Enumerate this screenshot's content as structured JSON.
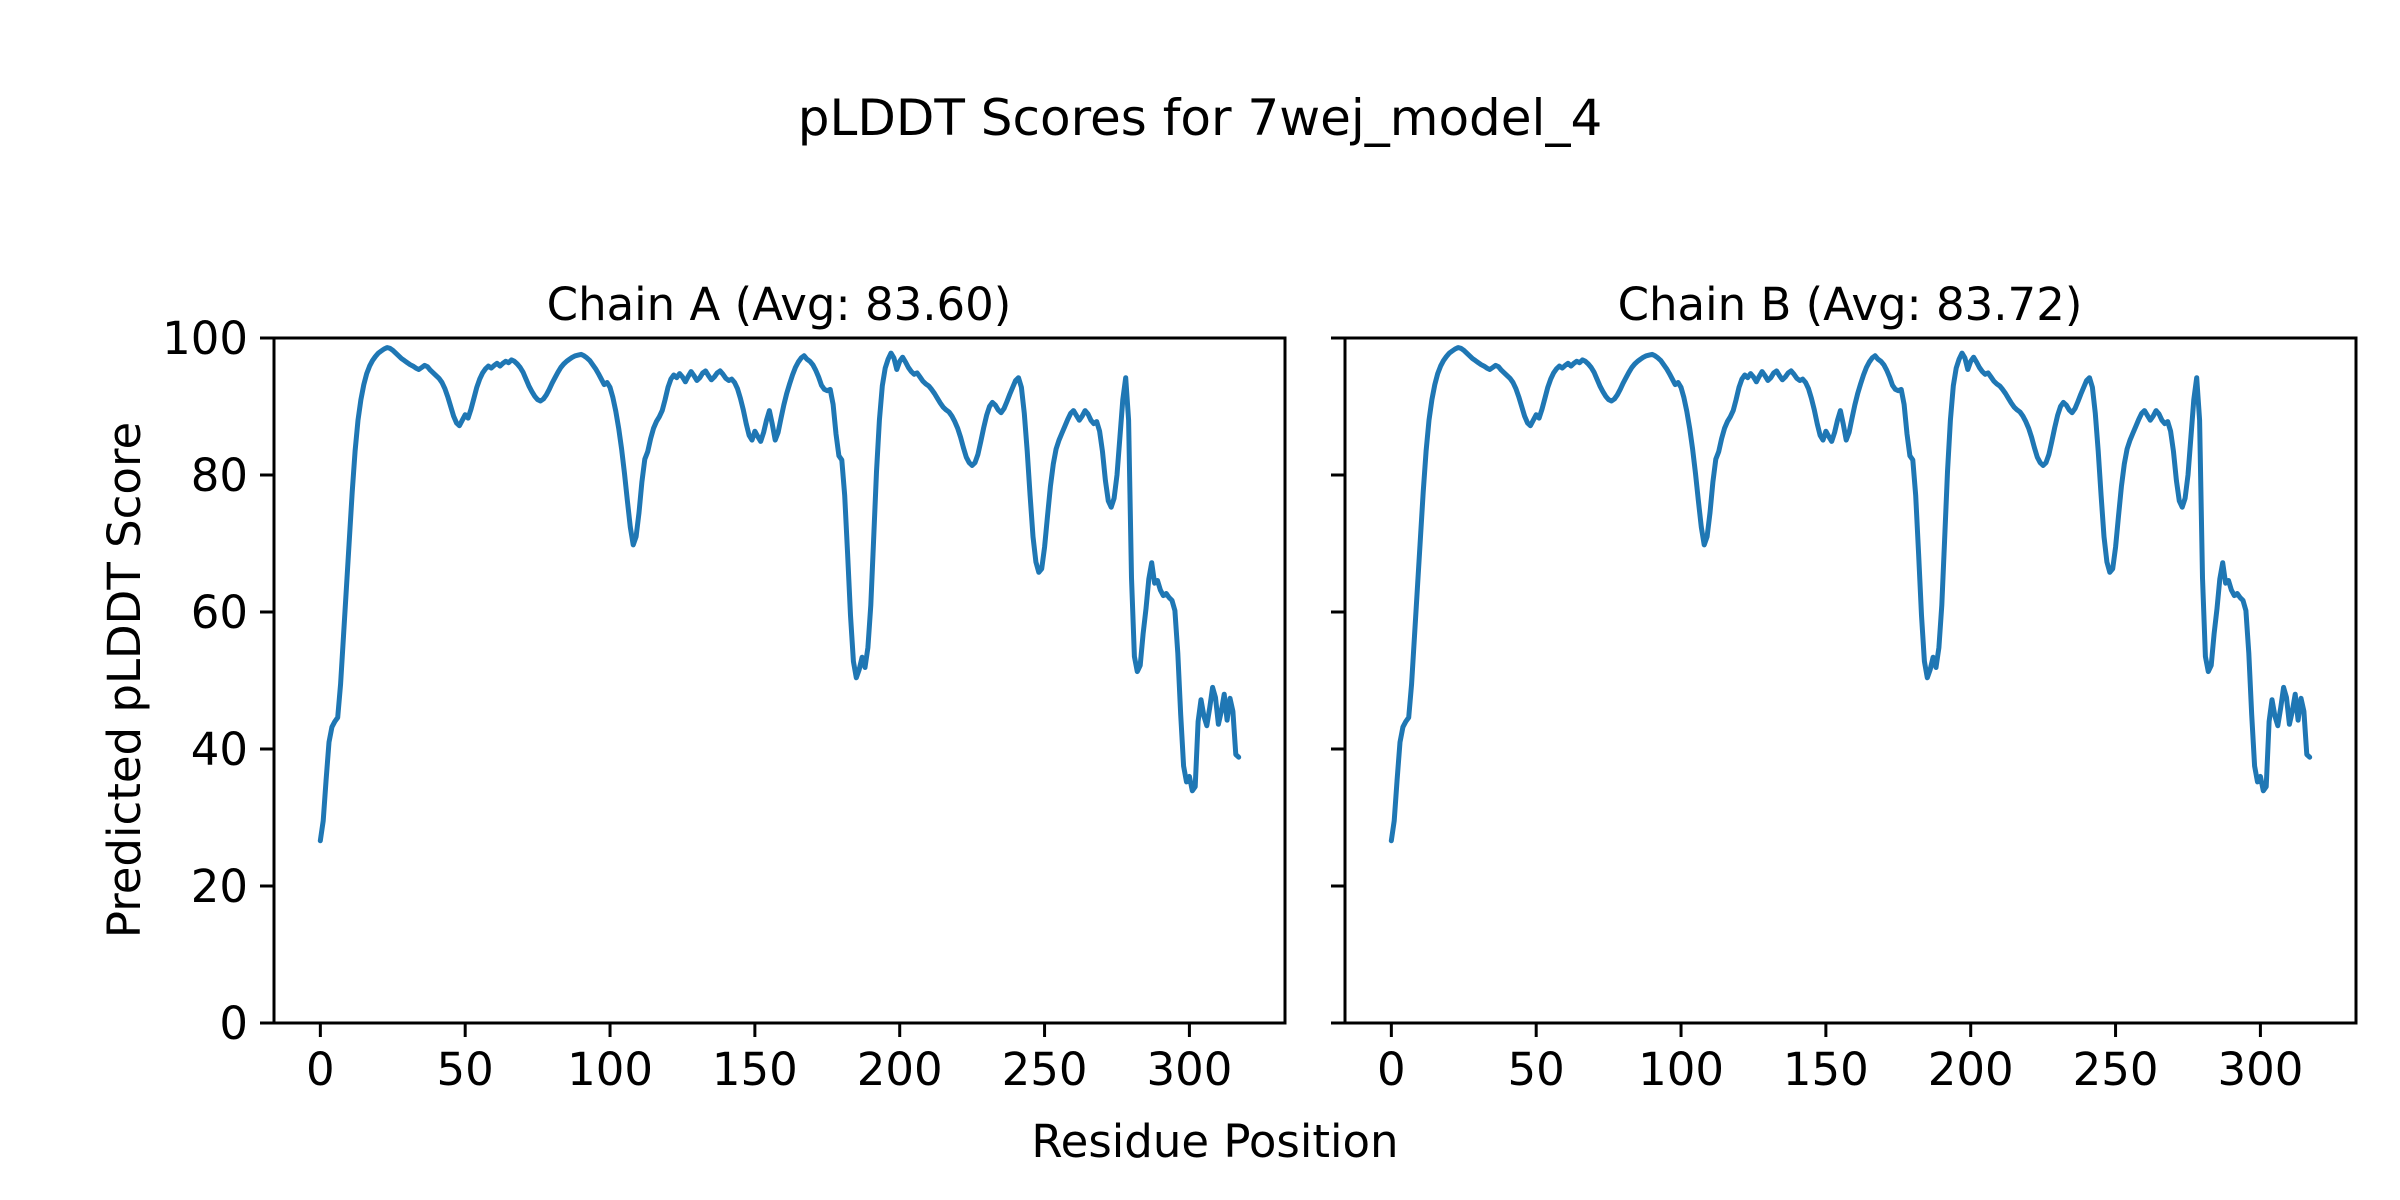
{
  "figure": {
    "title": "pLDDT Scores for 7wej_model_4",
    "xlabel": "Residue Position",
    "ylabel": "Predicted pLDDT Score",
    "background_color": "#ffffff",
    "line_color": "#1f77b4",
    "axis_color": "#000000"
  },
  "chart_data": [
    {
      "type": "line",
      "title": "Chain A (Avg: 83.60)",
      "avg_label": "83.60",
      "xlabel": "Residue Position",
      "ylabel": "Predicted pLDDT Score",
      "xlim": [
        -16,
        333
      ],
      "ylim": [
        0,
        100
      ],
      "xticks": [
        0,
        50,
        100,
        150,
        200,
        250,
        300
      ],
      "yticks": [
        0,
        20,
        40,
        60,
        80,
        100
      ],
      "grid": false,
      "legend": "none",
      "series": [
        {
          "name": "Chain A pLDDT",
          "x_start": 0,
          "x_step": 1,
          "values": [
            26.6,
            29.5,
            35.5,
            41.0,
            43.2,
            44.0,
            44.6,
            49.5,
            56.5,
            63.5,
            70.5,
            77.5,
            83.5,
            88.0,
            91.0,
            93.2,
            94.8,
            95.9,
            96.7,
            97.3,
            97.8,
            98.1,
            98.4,
            98.6,
            98.5,
            98.2,
            97.8,
            97.4,
            97.0,
            96.7,
            96.4,
            96.1,
            95.9,
            95.6,
            95.4,
            95.7,
            96.0,
            95.8,
            95.3,
            94.9,
            94.5,
            94.1,
            93.5,
            92.6,
            91.4,
            90.0,
            88.6,
            87.6,
            87.2,
            88.0,
            88.8,
            88.3,
            89.6,
            91.2,
            92.8,
            94.0,
            94.9,
            95.5,
            95.9,
            95.6,
            96.0,
            96.3,
            95.9,
            96.3,
            96.6,
            96.4,
            96.8,
            96.6,
            96.2,
            95.7,
            95.0,
            94.0,
            93.0,
            92.2,
            91.5,
            91.0,
            90.8,
            91.1,
            91.7,
            92.5,
            93.4,
            94.2,
            95.0,
            95.7,
            96.2,
            96.6,
            96.9,
            97.2,
            97.4,
            97.5,
            97.6,
            97.4,
            97.1,
            96.7,
            96.1,
            95.5,
            94.8,
            94.0,
            93.2,
            93.5,
            92.8,
            91.3,
            89.3,
            86.8,
            83.8,
            80.2,
            76.2,
            72.4,
            69.8,
            71.0,
            74.5,
            79.0,
            82.3,
            83.4,
            85.3,
            86.8,
            87.8,
            88.5,
            89.4,
            91.0,
            92.8,
            94.0,
            94.6,
            94.2,
            94.8,
            94.3,
            93.6,
            94.4,
            95.1,
            94.5,
            93.8,
            94.2,
            94.9,
            95.2,
            94.5,
            93.9,
            94.3,
            94.9,
            95.2,
            94.7,
            94.1,
            93.8,
            94.0,
            93.5,
            92.6,
            91.2,
            89.5,
            87.5,
            85.8,
            85.1,
            86.4,
            85.6,
            84.9,
            86.2,
            88.0,
            89.4,
            87.4,
            85.1,
            86.2,
            88.2,
            90.2,
            91.9,
            93.3,
            94.6,
            95.7,
            96.5,
            97.1,
            97.4,
            96.9,
            96.6,
            96.1,
            95.3,
            94.3,
            93.1,
            92.5,
            92.3,
            92.5,
            90.3,
            86.0,
            82.8,
            82.2,
            77.0,
            68.5,
            59.5,
            52.8,
            50.4,
            51.6,
            53.4,
            51.9,
            54.8,
            61.0,
            70.5,
            80.5,
            88.0,
            93.0,
            95.6,
            96.9,
            97.8,
            97.1,
            95.4,
            96.6,
            97.2,
            96.5,
            95.7,
            95.1,
            94.7,
            94.9,
            94.3,
            93.7,
            93.3,
            93.0,
            92.5,
            91.9,
            91.2,
            90.5,
            89.9,
            89.5,
            89.2,
            88.6,
            87.8,
            86.8,
            85.5,
            84.0,
            82.6,
            81.8,
            81.4,
            81.8,
            83.0,
            84.9,
            86.9,
            88.7,
            90.0,
            90.6,
            90.2,
            89.5,
            89.1,
            89.7,
            90.7,
            91.8,
            92.8,
            93.8,
            94.2,
            92.8,
            89.0,
            83.5,
            77.0,
            71.0,
            67.3,
            65.8,
            66.3,
            69.5,
            74.0,
            78.3,
            81.6,
            83.8,
            85.1,
            86.1,
            87.1,
            88.1,
            89.0,
            89.4,
            88.7,
            88.0,
            88.6,
            89.4,
            88.9,
            88.0,
            87.5,
            87.8,
            86.4,
            83.4,
            79.2,
            76.2,
            75.3,
            76.6,
            80.0,
            85.5,
            91.0,
            94.2,
            88.0,
            65.0,
            53.5,
            51.3,
            52.2,
            56.8,
            60.5,
            64.8,
            67.2,
            64.2,
            64.6,
            63.2,
            62.4,
            62.7,
            62.1,
            61.7,
            60.2,
            54.0,
            45.0,
            37.5,
            35.2,
            36.0,
            33.9,
            34.5,
            44.0,
            47.2,
            44.8,
            43.4,
            46.0,
            49.0,
            47.5,
            43.6,
            45.5,
            48.0,
            44.2,
            47.4,
            45.5,
            39.2,
            38.8
          ]
        }
      ]
    },
    {
      "type": "line",
      "title": "Chain B (Avg: 83.72)",
      "avg_label": "83.72",
      "xlabel": "Residue Position",
      "ylabel": "Predicted pLDDT Score",
      "xlim": [
        -16,
        333
      ],
      "ylim": [
        0,
        100
      ],
      "xticks": [
        0,
        50,
        100,
        150,
        200,
        250,
        300
      ],
      "yticks": [
        0,
        20,
        40,
        60,
        80,
        100
      ],
      "grid": false,
      "legend": "none",
      "series": [
        {
          "name": "Chain B pLDDT",
          "x_start": 0,
          "x_step": 1,
          "values": [
            26.6,
            29.5,
            35.5,
            41.0,
            43.2,
            44.0,
            44.6,
            49.5,
            56.5,
            63.5,
            70.5,
            77.5,
            83.5,
            88.0,
            91.0,
            93.2,
            94.8,
            95.9,
            96.7,
            97.3,
            97.8,
            98.1,
            98.4,
            98.6,
            98.5,
            98.2,
            97.8,
            97.4,
            97.0,
            96.7,
            96.4,
            96.1,
            95.9,
            95.6,
            95.4,
            95.7,
            96.0,
            95.8,
            95.3,
            94.9,
            94.5,
            94.1,
            93.5,
            92.6,
            91.4,
            90.0,
            88.6,
            87.6,
            87.2,
            88.0,
            88.8,
            88.3,
            89.6,
            91.2,
            92.8,
            94.0,
            94.9,
            95.5,
            95.9,
            95.6,
            96.0,
            96.3,
            95.9,
            96.3,
            96.6,
            96.4,
            96.8,
            96.6,
            96.2,
            95.7,
            95.0,
            94.0,
            93.0,
            92.2,
            91.5,
            91.0,
            90.8,
            91.1,
            91.7,
            92.5,
            93.4,
            94.2,
            95.0,
            95.7,
            96.2,
            96.6,
            96.9,
            97.2,
            97.4,
            97.5,
            97.6,
            97.4,
            97.1,
            96.7,
            96.1,
            95.5,
            94.8,
            94.0,
            93.2,
            93.5,
            92.8,
            91.3,
            89.3,
            86.8,
            83.8,
            80.2,
            76.2,
            72.4,
            69.8,
            71.0,
            74.5,
            79.0,
            82.3,
            83.4,
            85.3,
            86.8,
            87.8,
            88.5,
            89.4,
            91.0,
            92.8,
            94.0,
            94.6,
            94.2,
            94.8,
            94.3,
            93.6,
            94.4,
            95.1,
            94.5,
            93.8,
            94.2,
            94.9,
            95.2,
            94.5,
            93.9,
            94.3,
            94.9,
            95.2,
            94.7,
            94.1,
            93.8,
            94.0,
            93.5,
            92.6,
            91.2,
            89.5,
            87.5,
            85.8,
            85.1,
            86.4,
            85.6,
            84.9,
            86.2,
            88.0,
            89.4,
            87.4,
            85.1,
            86.2,
            88.2,
            90.2,
            91.9,
            93.3,
            94.6,
            95.7,
            96.5,
            97.1,
            97.4,
            96.9,
            96.6,
            96.1,
            95.3,
            94.3,
            93.1,
            92.5,
            92.3,
            92.5,
            90.3,
            86.0,
            82.8,
            82.2,
            77.0,
            68.5,
            59.5,
            52.8,
            50.4,
            51.6,
            53.4,
            51.9,
            54.8,
            61.0,
            70.5,
            80.5,
            88.0,
            93.0,
            95.6,
            96.9,
            97.8,
            97.1,
            95.4,
            96.6,
            97.2,
            96.5,
            95.7,
            95.1,
            94.7,
            94.9,
            94.3,
            93.7,
            93.3,
            93.0,
            92.5,
            91.9,
            91.2,
            90.5,
            89.9,
            89.5,
            89.2,
            88.6,
            87.8,
            86.8,
            85.5,
            84.0,
            82.6,
            81.8,
            81.4,
            81.8,
            83.0,
            84.9,
            86.9,
            88.7,
            90.0,
            90.6,
            90.2,
            89.5,
            89.1,
            89.7,
            90.7,
            91.8,
            92.8,
            93.8,
            94.2,
            92.8,
            89.0,
            83.5,
            77.0,
            71.0,
            67.3,
            65.8,
            66.3,
            69.5,
            74.0,
            78.3,
            81.6,
            83.8,
            85.1,
            86.1,
            87.1,
            88.1,
            89.0,
            89.4,
            88.7,
            88.0,
            88.6,
            89.4,
            88.9,
            88.0,
            87.5,
            87.8,
            86.4,
            83.4,
            79.2,
            76.2,
            75.3,
            76.6,
            80.0,
            85.5,
            91.0,
            94.2,
            88.0,
            65.0,
            53.5,
            51.3,
            52.2,
            56.8,
            60.5,
            64.8,
            67.2,
            64.2,
            64.6,
            63.2,
            62.4,
            62.7,
            62.1,
            61.7,
            60.2,
            54.0,
            45.0,
            37.5,
            35.2,
            36.0,
            33.9,
            34.5,
            44.0,
            47.2,
            44.8,
            43.4,
            46.0,
            49.0,
            47.5,
            43.6,
            45.5,
            48.0,
            44.2,
            47.4,
            45.5,
            39.2,
            38.8
          ]
        }
      ]
    }
  ]
}
